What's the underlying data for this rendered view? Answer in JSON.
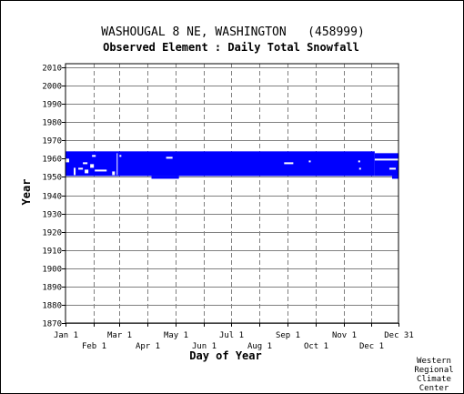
{
  "header": {
    "station_title": "WASHOUGAL 8 NE, WASHINGTON   (458999)",
    "element_title": "Observed Element : Daily Total Snowfall"
  },
  "credit": {
    "lines": [
      "Western",
      "Regional",
      "Climate",
      "Center"
    ]
  },
  "colors": {
    "data_fill": "#0000ff",
    "grid_line": "#808080",
    "axis": "#000000",
    "background": "#ffffff"
  },
  "chart_data": {
    "type": "heatmap",
    "title": "WASHOUGAL 8 NE, WASHINGTON   (458999)",
    "subtitle": "Observed Element : Daily Total Snowfall",
    "xlabel": "Day of Year",
    "ylabel": "Year",
    "xlim": [
      1,
      365
    ],
    "ylim": [
      1870,
      2012
    ],
    "grid": true,
    "y_ticks": [
      1870,
      1880,
      1890,
      1900,
      1910,
      1920,
      1930,
      1940,
      1950,
      1960,
      1970,
      1980,
      1990,
      2000,
      2010
    ],
    "x_ticks_upper": [
      {
        "label": "Jan 1",
        "day": 1
      },
      {
        "label": "Mar 1",
        "day": 60
      },
      {
        "label": "May 1",
        "day": 121
      },
      {
        "label": "Jul 1",
        "day": 182
      },
      {
        "label": "Sep 1",
        "day": 244
      },
      {
        "label": "Nov 1",
        "day": 305
      },
      {
        "label": "Dec 31",
        "day": 365
      }
    ],
    "x_ticks_lower": [
      {
        "label": "Feb 1",
        "day": 32
      },
      {
        "label": "Apr 1",
        "day": 91
      },
      {
        "label": "Jun 1",
        "day": 152
      },
      {
        "label": "Aug 1",
        "day": 213
      },
      {
        "label": "Oct 1",
        "day": 274
      },
      {
        "label": "Dec 1",
        "day": 335
      }
    ],
    "coverage_blocks": [
      {
        "day_start": 1,
        "day_end": 339,
        "year_start": 1950.5,
        "year_end": 1964
      },
      {
        "day_start": 339,
        "day_end": 365,
        "year_start": 1950.5,
        "year_end": 1963
      }
    ],
    "data_gaps": [
      {
        "day_start": 1,
        "day_end": 5,
        "year_start": 1958,
        "year_end": 1960
      },
      {
        "day_start": 10,
        "day_end": 12,
        "year_start": 1951,
        "year_end": 1955
      },
      {
        "day_start": 15,
        "day_end": 20,
        "year_start": 1954,
        "year_end": 1955
      },
      {
        "day_start": 20,
        "day_end": 25,
        "year_start": 1957,
        "year_end": 1958
      },
      {
        "day_start": 22,
        "day_end": 26,
        "year_start": 1952,
        "year_end": 1954
      },
      {
        "day_start": 28,
        "day_end": 32,
        "year_start": 1955,
        "year_end": 1957
      },
      {
        "day_start": 33,
        "day_end": 46,
        "year_start": 1953,
        "year_end": 1954
      },
      {
        "day_start": 30,
        "day_end": 34,
        "year_start": 1961,
        "year_end": 1962
      },
      {
        "day_start": 52,
        "day_end": 55,
        "year_start": 1951,
        "year_end": 1953
      },
      {
        "day_start": 57,
        "day_end": 58,
        "year_start": 1951,
        "year_end": 1963
      },
      {
        "day_start": 60,
        "day_end": 62,
        "year_start": 1961,
        "year_end": 1962
      },
      {
        "day_start": 111,
        "day_end": 118,
        "year_start": 1960,
        "year_end": 1961
      },
      {
        "day_start": 240,
        "day_end": 250,
        "year_start": 1957,
        "year_end": 1958
      },
      {
        "day_start": 267,
        "day_end": 269,
        "year_start": 1958,
        "year_end": 1959
      },
      {
        "day_start": 321,
        "day_end": 323,
        "year_start": 1958,
        "year_end": 1959
      },
      {
        "day_start": 322,
        "day_end": 324,
        "year_start": 1954,
        "year_end": 1955
      },
      {
        "day_start": 339,
        "day_end": 365,
        "year_start": 1959,
        "year_end": 1960
      },
      {
        "day_start": 355,
        "day_end": 362,
        "year_start": 1954,
        "year_end": 1955
      }
    ],
    "extensions_below": [
      {
        "day_start": 95,
        "day_end": 125,
        "year_start": 1949,
        "year_end": 1950.5
      },
      {
        "day_start": 358,
        "day_end": 365,
        "year_start": 1949,
        "year_end": 1950.5
      }
    ]
  }
}
